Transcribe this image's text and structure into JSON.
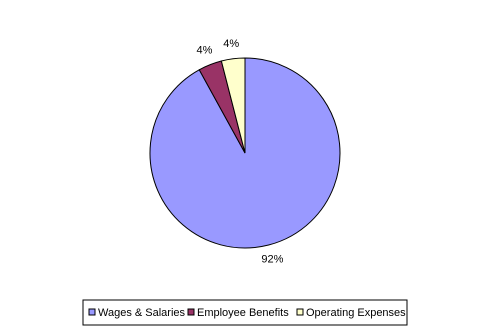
{
  "chart_data": {
    "type": "pie",
    "categories": [
      "Wages & Salaries",
      "Employee Benefits",
      "Operating Expenses"
    ],
    "values": [
      92,
      4,
      4
    ],
    "value_labels": [
      "92%",
      "4%",
      "4%"
    ],
    "colors": [
      "#9999ff",
      "#993366",
      "#ffffcc"
    ],
    "legend": "bottom"
  }
}
